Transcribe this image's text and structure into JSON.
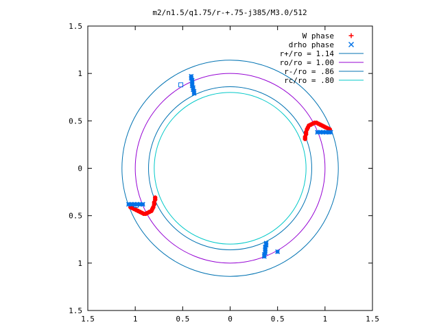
{
  "chart_data": {
    "type": "scatter",
    "title": "m2/n1.5/q1.75/r-+.75-j385/M3.0/512",
    "xlabel": "",
    "ylabel": "",
    "xlim": [
      -1.5,
      1.5
    ],
    "ylim": [
      -1.5,
      1.5
    ],
    "x_ticks": [
      -1.5,
      -1,
      -0.5,
      0,
      0.5,
      1,
      1.5
    ],
    "x_tick_labels": [
      "1.5",
      "1",
      "0.5",
      "0",
      "0.5",
      "1",
      "1.5"
    ],
    "y_ticks": [
      1.5,
      1,
      0.5,
      0,
      -0.5,
      -1,
      -1.5
    ],
    "y_tick_labels": [
      "1.5",
      "1",
      "0.5",
      "0",
      "0.5",
      "1",
      "1.5"
    ],
    "grid": false,
    "legend_position": "top-right",
    "circles": [
      {
        "name": "r+/ro = 1.14",
        "radius": 1.14,
        "color": "#0072b2"
      },
      {
        "name": "ro/ro = 1.00",
        "radius": 1.0,
        "color": "#9400d3"
      },
      {
        "name": "r-/ro = .86",
        "radius": 0.86,
        "color": "#0072b2"
      },
      {
        "name": "rc/ro = .80",
        "radius": 0.8,
        "color": "#00c8c8"
      }
    ],
    "series": [
      {
        "name": "W phase",
        "marker": "+",
        "color": "#ff0000",
        "points": [
          [
            0.79,
            0.31
          ],
          [
            0.79,
            0.33
          ],
          [
            0.8,
            0.36
          ],
          [
            0.8,
            0.38
          ],
          [
            0.81,
            0.41
          ],
          [
            0.82,
            0.43
          ],
          [
            0.83,
            0.45
          ],
          [
            0.85,
            0.46
          ],
          [
            0.87,
            0.47
          ],
          [
            0.89,
            0.48
          ],
          [
            0.91,
            0.48
          ],
          [
            0.93,
            0.47
          ],
          [
            0.95,
            0.46
          ],
          [
            0.97,
            0.45
          ],
          [
            0.99,
            0.44
          ],
          [
            1.01,
            0.43
          ],
          [
            1.03,
            0.42
          ],
          [
            1.05,
            0.41
          ],
          [
            -0.79,
            -0.31
          ],
          [
            -0.79,
            -0.33
          ],
          [
            -0.8,
            -0.36
          ],
          [
            -0.8,
            -0.38
          ],
          [
            -0.81,
            -0.41
          ],
          [
            -0.82,
            -0.43
          ],
          [
            -0.83,
            -0.45
          ],
          [
            -0.85,
            -0.46
          ],
          [
            -0.87,
            -0.47
          ],
          [
            -0.89,
            -0.48
          ],
          [
            -0.91,
            -0.48
          ],
          [
            -0.93,
            -0.47
          ],
          [
            -0.95,
            -0.46
          ],
          [
            -0.97,
            -0.45
          ],
          [
            -0.99,
            -0.44
          ],
          [
            -1.01,
            -0.43
          ],
          [
            -1.03,
            -0.42
          ],
          [
            -1.05,
            -0.41
          ]
        ]
      },
      {
        "name": "drho phase",
        "marker": "x",
        "color": "#0072e6",
        "points": [
          [
            -0.41,
            0.97
          ],
          [
            -0.41,
            0.95
          ],
          [
            -0.4,
            0.93
          ],
          [
            -0.4,
            0.91
          ],
          [
            -0.4,
            0.89
          ],
          [
            -0.4,
            0.87
          ],
          [
            -0.39,
            0.85
          ],
          [
            -0.39,
            0.83
          ],
          [
            -0.38,
            0.81
          ],
          [
            -0.38,
            0.79
          ],
          [
            0.38,
            -0.79
          ],
          [
            0.38,
            -0.81
          ],
          [
            0.37,
            -0.83
          ],
          [
            0.37,
            -0.85
          ],
          [
            0.37,
            -0.87
          ],
          [
            0.37,
            -0.89
          ],
          [
            0.36,
            -0.91
          ],
          [
            0.36,
            -0.93
          ],
          [
            0.5,
            -0.88
          ],
          [
            0.92,
            0.38
          ],
          [
            0.95,
            0.38
          ],
          [
            0.98,
            0.38
          ],
          [
            1.01,
            0.38
          ],
          [
            1.04,
            0.38
          ],
          [
            1.06,
            0.38
          ],
          [
            -0.92,
            -0.38
          ],
          [
            -0.95,
            -0.38
          ],
          [
            -0.98,
            -0.38
          ],
          [
            -1.01,
            -0.38
          ],
          [
            -1.04,
            -0.38
          ],
          [
            -1.07,
            -0.38
          ]
        ]
      }
    ],
    "extra_points": [
      {
        "marker": "square",
        "color": "#0072e6",
        "x": -0.52,
        "y": 0.88
      },
      {
        "marker": "square",
        "color": "#0072e6",
        "x": -0.99,
        "y": -0.39
      }
    ]
  }
}
